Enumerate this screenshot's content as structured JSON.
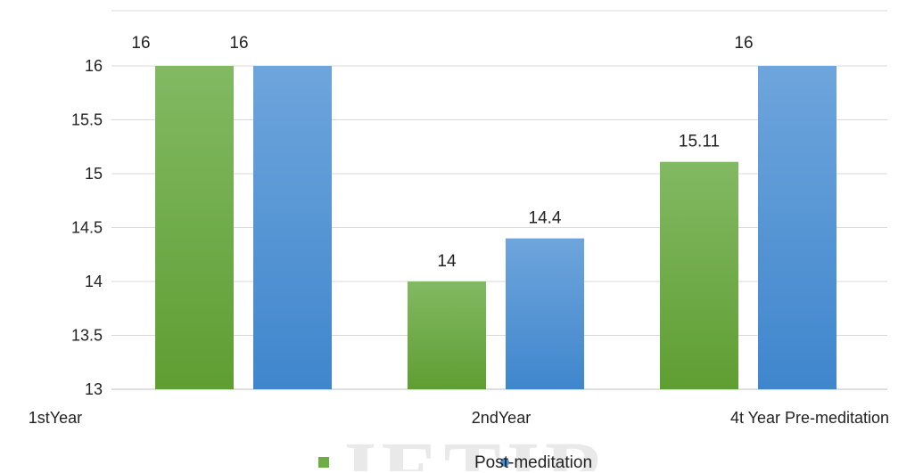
{
  "chart_data": {
    "type": "bar",
    "title": "",
    "xlabel": "",
    "ylabel": "",
    "ylim": [
      13,
      16
    ],
    "yticks": [
      "13",
      "13.5",
      "14",
      "14.5",
      "15",
      "15.5",
      "16"
    ],
    "categories": [
      "1stYear",
      "2ndYear",
      "4t Year"
    ],
    "legend_extra_label": "Pre-meditation",
    "series": [
      {
        "name": "",
        "color": "#6eac45",
        "values": [
          16,
          14,
          15.11
        ],
        "labels": [
          "16",
          "14",
          "15.11"
        ]
      },
      {
        "name": "Post-meditation",
        "color": "#4a8ed3",
        "values": [
          16,
          14.4,
          16
        ],
        "labels": [
          "16",
          "14.4",
          "16"
        ]
      }
    ],
    "grid": true,
    "legend_position": "bottom"
  },
  "legend": {
    "label": "Post-meditation"
  },
  "watermark": "JETIR"
}
